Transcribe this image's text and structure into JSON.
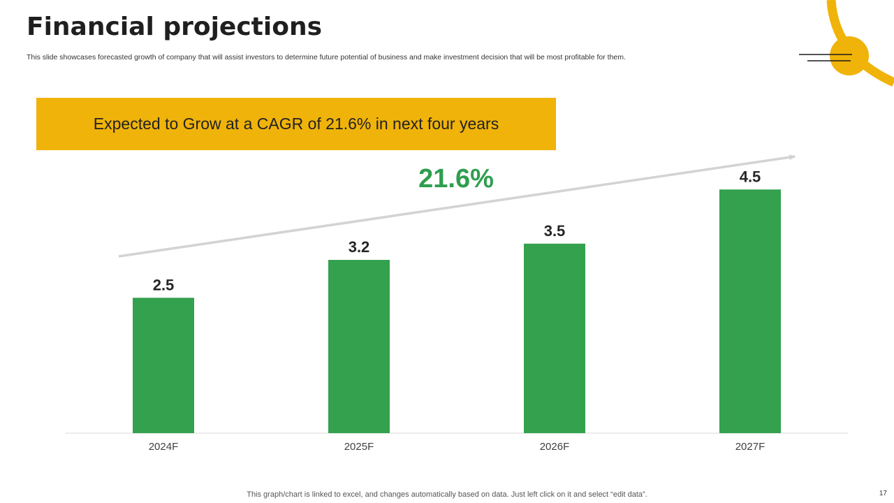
{
  "slide": {
    "title": "Financial projections",
    "subtitle": "This slide showcases forecasted growth of company that will assist investors to determine future potential of business and make investment decision that will be most profitable for them.",
    "banner_text": "Expected to Grow at a CAGR of 21.6% in next four years",
    "footer_note": "This graph/chart is linked to excel,  and changes automatically based on data. Just left click on it and select “edit data”.",
    "page_number": "17"
  },
  "colors": {
    "accent_yellow": "#F0B30A",
    "bar_green": "#33A14E",
    "cagr_green": "#2E9E4F",
    "arrow_gray": "#D3D3D3",
    "axis_gray": "#D9D9D9"
  },
  "chart_data": {
    "type": "bar",
    "title": "",
    "xlabel": "",
    "ylabel": "",
    "categories": [
      "2024F",
      "2025F",
      "2026F",
      "2027F"
    ],
    "values": [
      2.5,
      3.2,
      3.5,
      4.5
    ],
    "data_labels": [
      "2.5",
      "3.2",
      "3.5",
      "4.5"
    ],
    "ylim": [
      0,
      5
    ],
    "grid": false,
    "annotation": {
      "text": "21.6%",
      "kind": "growth-arrow"
    }
  }
}
